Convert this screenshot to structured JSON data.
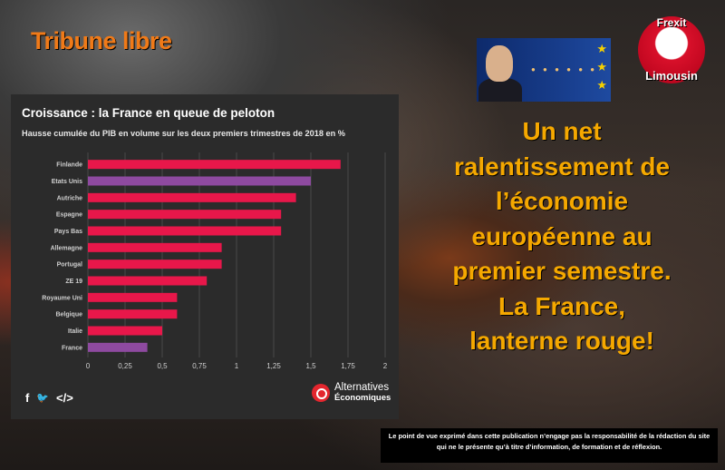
{
  "tribune": "Tribune libre",
  "badge": {
    "top": "Frexit",
    "bottom": "Limousin"
  },
  "headline": [
    "Un net",
    "ralentissement de",
    "l’économie",
    "européenne au",
    "premier semestre.",
    "La France,",
    "lanterne rouge!"
  ],
  "card": {
    "title": "Croissance : la France en queue de peloton",
    "subtitle": "Hausse cumulée du PIB en volume sur les deux premiers trimestres de 2018 en %",
    "social": {
      "facebook": "f",
      "twitter": "🐦",
      "embed": "</>"
    },
    "logo": {
      "line1": "Alternatives",
      "line2": "Économiques"
    }
  },
  "colors": {
    "highlight": "#8e4aa0",
    "default": "#e8174a",
    "headline": "#f5a800",
    "brand": "#f07a18"
  },
  "chart_data": {
    "type": "bar",
    "orientation": "horizontal",
    "title": "Croissance : la France en queue de peloton",
    "subtitle": "Hausse cumulée du PIB en volume sur les deux premiers trimestres de 2018 en %",
    "categories": [
      "Finlande",
      "Etats Unis",
      "Autriche",
      "Espagne",
      "Pays Bas",
      "Allemagne",
      "Portugal",
      "ZE 19",
      "Royaume Uni",
      "Belgique",
      "Italie",
      "France"
    ],
    "values": [
      1.7,
      1.5,
      1.4,
      1.3,
      1.3,
      0.9,
      0.9,
      0.8,
      0.6,
      0.6,
      0.5,
      0.4
    ],
    "highlighted": [
      "Etats Unis",
      "France"
    ],
    "xlim": [
      0,
      2
    ],
    "xticks": [
      "0",
      "0,25",
      "0,5",
      "0,75",
      "1",
      "1,25",
      "1,5",
      "1,75",
      "2"
    ],
    "grid": true
  },
  "disclaimer": "Le point de vue exprimé dans cette publication n’engage pas la responsabilité de la rédaction du site qui ne le présente qu’à titre d’information, de formation et de réflexion."
}
